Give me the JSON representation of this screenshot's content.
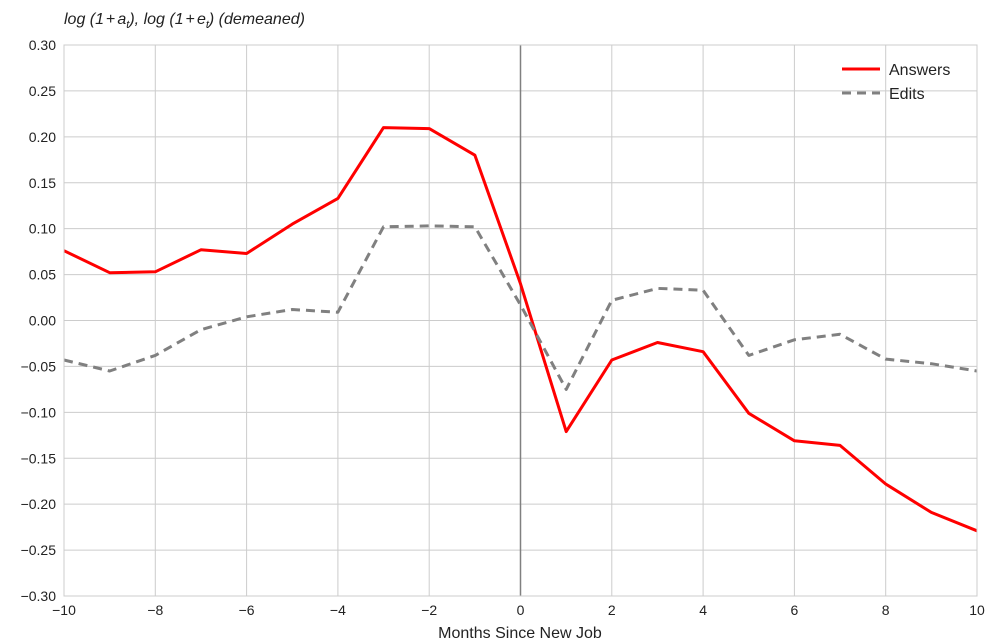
{
  "chart_data": {
    "type": "line",
    "title": "",
    "xlabel": "Months Since New Job",
    "ylabel": {
      "p1": "log (1",
      "op1": "+",
      "var1": "a",
      "sub1": "t",
      "p2": "), log (1",
      "op2": "+",
      "var2": "e",
      "sub2": "t",
      "p3": ") (demeaned)"
    },
    "xlim": [
      -10,
      10
    ],
    "ylim": [
      -0.3,
      0.3
    ],
    "xticks": [
      -10,
      -8,
      -6,
      -4,
      -2,
      0,
      2,
      4,
      6,
      8,
      10
    ],
    "xtick_labels": [
      "−10",
      "−8",
      "−6",
      "−4",
      "−2",
      "0",
      "2",
      "4",
      "6",
      "8",
      "10"
    ],
    "yticks": [
      -0.3,
      -0.25,
      -0.2,
      -0.15,
      -0.1,
      -0.05,
      0.0,
      0.05,
      0.1,
      0.15,
      0.2,
      0.25,
      0.3
    ],
    "ytick_labels": [
      "−0.30",
      "−0.25",
      "−0.20",
      "−0.15",
      "−0.10",
      "−0.05",
      "0.00",
      "0.05",
      "0.10",
      "0.15",
      "0.20",
      "0.25",
      "0.30"
    ],
    "vline_x": 0,
    "vline_color": "#808080",
    "grid": true,
    "legend_position": "top-right",
    "x": [
      -10,
      -9,
      -8,
      -7,
      -6,
      -5,
      -4,
      -3,
      -2,
      -1,
      0,
      1,
      2,
      3,
      4,
      5,
      6,
      7,
      8,
      9,
      10
    ],
    "series": [
      {
        "name": "Answers",
        "color": "#ff0000",
        "style": "solid",
        "values": [
          0.076,
          0.052,
          0.053,
          0.077,
          0.073,
          0.105,
          0.133,
          0.21,
          0.209,
          0.18,
          0.04,
          -0.121,
          -0.043,
          -0.024,
          -0.034,
          -0.101,
          -0.131,
          -0.136,
          -0.178,
          -0.209,
          -0.229
        ]
      },
      {
        "name": "Edits",
        "color": "#808080",
        "style": "dashed",
        "values": [
          -0.043,
          -0.055,
          -0.038,
          -0.01,
          0.004,
          0.012,
          0.009,
          0.102,
          0.103,
          0.102,
          0.017,
          -0.075,
          0.022,
          0.035,
          0.033,
          -0.038,
          -0.021,
          -0.015,
          -0.042,
          -0.047,
          -0.055
        ]
      }
    ]
  }
}
